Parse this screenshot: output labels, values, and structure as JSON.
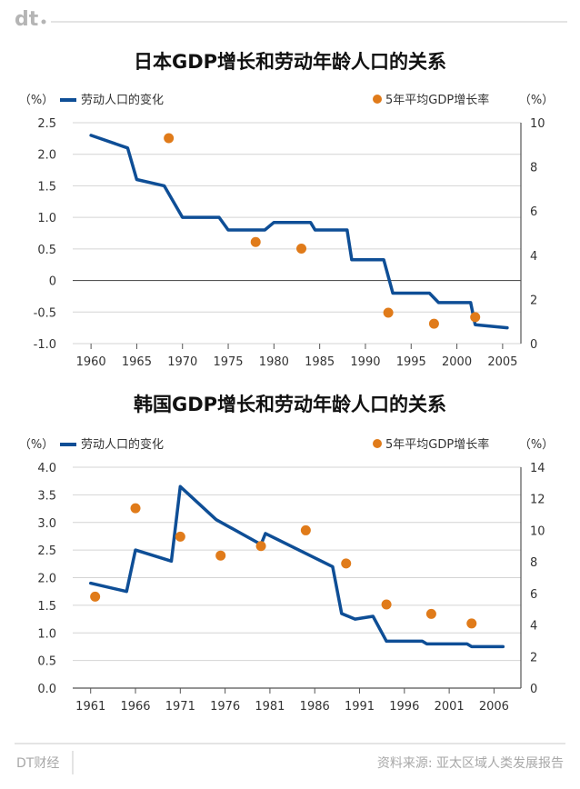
{
  "header": {
    "logo_text": "dt"
  },
  "footer": {
    "brand": "DT财经",
    "source": "资料来源: 亚太区域人类发展报告"
  },
  "colors": {
    "line": "#0e4e96",
    "dot": "#e07b1a",
    "axis": "#333333",
    "text": "#333333"
  },
  "chart_data": [
    {
      "type": "line+scatter",
      "title": "日本GDP增长和劳动年龄人口的关系",
      "left_unit": "（%）",
      "right_unit": "（%）",
      "legend_line": "劳动人口的变化",
      "legend_dot": "5年平均GDP增长率",
      "x_ticks": [
        "1960",
        "1965",
        "1970",
        "1975",
        "1980",
        "1985",
        "1990",
        "1995",
        "2000",
        "2005"
      ],
      "xlim": [
        1958,
        2007
      ],
      "y_left_ticks": [
        "2.5",
        "2.0",
        "1.5",
        "1.0",
        "0.5",
        "0",
        "-0.5",
        "-1.0"
      ],
      "y_left_lim": [
        -1.0,
        2.5
      ],
      "y_right_ticks": [
        "10",
        "8",
        "6",
        "4",
        "2",
        "0"
      ],
      "y_right_lim": [
        0,
        10
      ],
      "line_series": {
        "name": "劳动人口的变化",
        "points": [
          [
            1960,
            2.3
          ],
          [
            1964,
            2.1
          ],
          [
            1965,
            1.6
          ],
          [
            1968,
            1.5
          ],
          [
            1970,
            1.0
          ],
          [
            1974,
            1.0
          ],
          [
            1975,
            0.8
          ],
          [
            1979,
            0.8
          ],
          [
            1980,
            0.92
          ],
          [
            1984,
            0.92
          ],
          [
            1984.5,
            0.8
          ],
          [
            1988,
            0.8
          ],
          [
            1988.5,
            0.33
          ],
          [
            1992,
            0.33
          ],
          [
            1993,
            -0.2
          ],
          [
            1997,
            -0.2
          ],
          [
            1998,
            -0.35
          ],
          [
            2001.5,
            -0.35
          ],
          [
            2002,
            -0.7
          ],
          [
            2005.5,
            -0.75
          ]
        ]
      },
      "scatter_series": {
        "name": "5年平均GDP增长率",
        "points": [
          [
            1968.5,
            9.3
          ],
          [
            1978,
            4.6
          ],
          [
            1983,
            4.3
          ],
          [
            1992.5,
            1.4
          ],
          [
            1997.5,
            0.9
          ],
          [
            2002,
            1.2
          ]
        ]
      }
    },
    {
      "type": "line+scatter",
      "title": "韩国GDP增长和劳动年龄人口的关系",
      "left_unit": "（%）",
      "right_unit": "（%）",
      "legend_line": "劳动人口的变化",
      "legend_dot": "5年平均GDP增长率",
      "x_ticks": [
        "1961",
        "1966",
        "1971",
        "1976",
        "1981",
        "1986",
        "1991",
        "1996",
        "2001",
        "2006"
      ],
      "xlim": [
        1959,
        2009
      ],
      "y_left_ticks": [
        "4.0",
        "3.5",
        "3.0",
        "2.5",
        "2.0",
        "1.5",
        "1.0",
        "0.5",
        "0.0"
      ],
      "y_left_lim": [
        0,
        4.0
      ],
      "y_right_ticks": [
        "14",
        "12",
        "10",
        "8",
        "6",
        "4",
        "2",
        "0"
      ],
      "y_right_lim": [
        0,
        14
      ],
      "line_series": {
        "name": "劳动人口的变化",
        "points": [
          [
            1961,
            1.9
          ],
          [
            1965,
            1.75
          ],
          [
            1966,
            2.5
          ],
          [
            1970,
            2.3
          ],
          [
            1971,
            3.65
          ],
          [
            1975,
            3.05
          ],
          [
            1980,
            2.6
          ],
          [
            1980.5,
            2.8
          ],
          [
            1988,
            2.2
          ],
          [
            1989,
            1.35
          ],
          [
            1990.5,
            1.25
          ],
          [
            1992.5,
            1.3
          ],
          [
            1994,
            0.85
          ],
          [
            1998,
            0.85
          ],
          [
            1998.5,
            0.8
          ],
          [
            2003,
            0.8
          ],
          [
            2003.5,
            0.75
          ],
          [
            2007,
            0.75
          ]
        ]
      },
      "scatter_series": {
        "name": "5年平均GDP增长率",
        "points": [
          [
            1961.5,
            5.8
          ],
          [
            1966,
            11.4
          ],
          [
            1971,
            9.6
          ],
          [
            1975.5,
            8.4
          ],
          [
            1980,
            9.0
          ],
          [
            1985,
            10.0
          ],
          [
            1989.5,
            7.9
          ],
          [
            1994,
            5.3
          ],
          [
            1999,
            4.7
          ],
          [
            2003.5,
            4.1
          ]
        ]
      }
    }
  ]
}
